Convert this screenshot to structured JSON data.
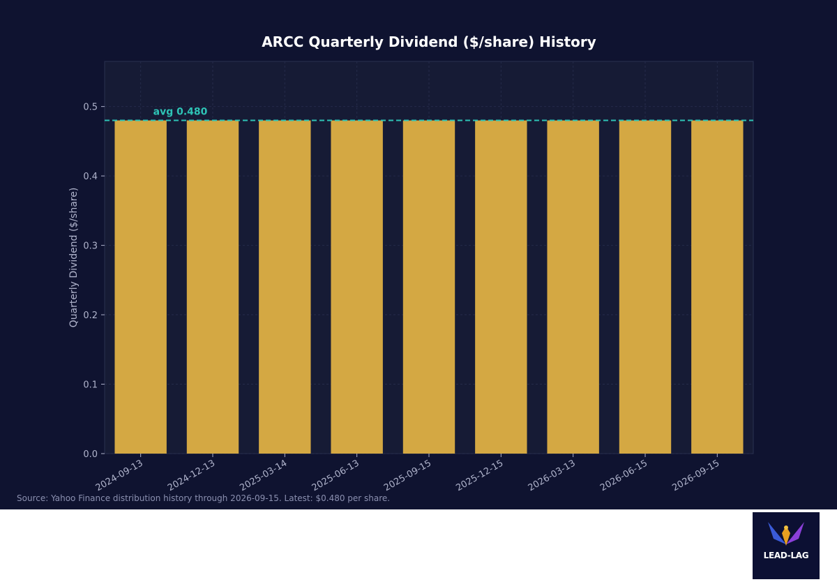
{
  "colors": {
    "background": "#0f1330",
    "plot_background": "#161b35",
    "bar": "#d4a843",
    "avg_line": "#2ec4b6",
    "axis_text": "#b0b4cc",
    "grid": "#252b4a"
  },
  "chart_data": {
    "type": "bar",
    "title": "ARCC Quarterly Dividend ($/share) History",
    "xlabel": "",
    "ylabel": "Quarterly Dividend ($/share)",
    "categories": [
      "2024-09-13",
      "2024-12-13",
      "2025-03-14",
      "2025-06-13",
      "2025-09-15",
      "2025-12-15",
      "2026-03-13",
      "2026-06-15",
      "2026-09-15"
    ],
    "values": [
      0.48,
      0.48,
      0.48,
      0.48,
      0.48,
      0.48,
      0.48,
      0.48,
      0.48
    ],
    "ylim": [
      0,
      0.565
    ],
    "yticks": [
      "0.0",
      "0.1",
      "0.2",
      "0.3",
      "0.4",
      "0.5"
    ],
    "average": 0.48,
    "average_label": "avg 0.480",
    "grid": true
  },
  "footer": {
    "source": "Source: Yahoo Finance distribution history through 2026-09-15. Latest: $0.480 per share."
  },
  "logo": {
    "text": "LEAD-LAG"
  }
}
